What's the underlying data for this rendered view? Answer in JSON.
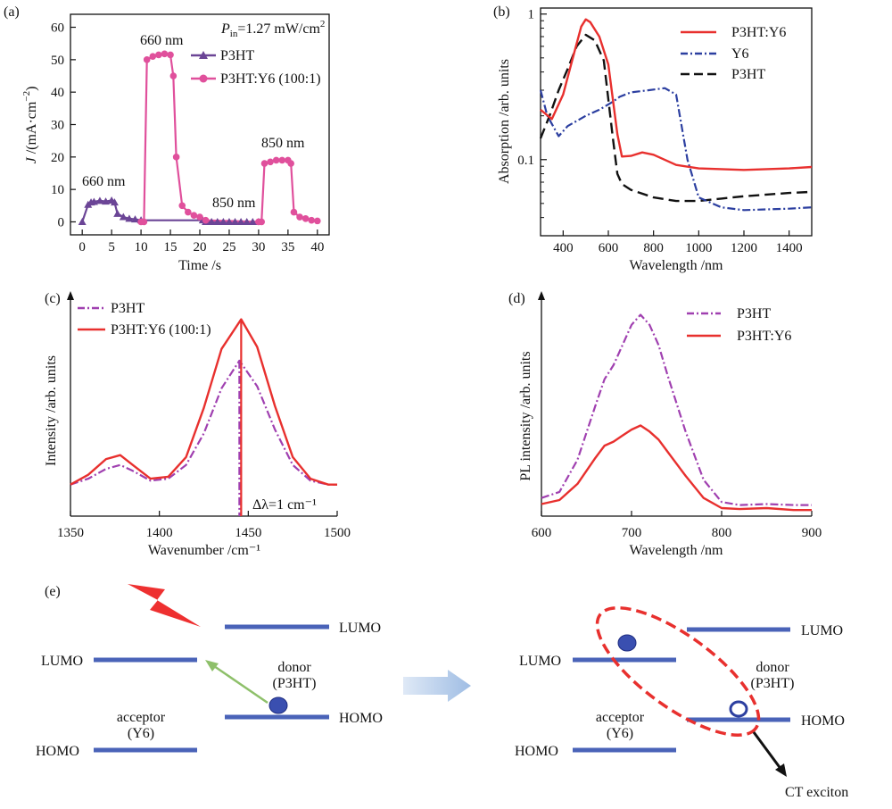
{
  "panel_labels": [
    "(a)",
    "(b)",
    "(c)",
    "(d)",
    "(e)"
  ],
  "colors": {
    "red": "#e8302e",
    "pink": "#e0509c",
    "purple": "#6b4596",
    "navy": "#2c3fa0",
    "black": "#111111",
    "violet": "#a040b0",
    "level": "#4a63b8",
    "green": "#8ec06a"
  },
  "chart_data": [
    {
      "id": "a",
      "type": "line",
      "title_annotation": {
        "p": "P",
        "sub": "in",
        "rest": "=1.27 mW/cm",
        "sup": "2"
      },
      "xlabel": "Time /s",
      "ylabel": {
        "pre": "J",
        "mid": " /(mA·cm",
        "sup": "−2",
        "post": ")"
      },
      "xlim": [
        -2,
        42
      ],
      "ylim": [
        -4,
        64
      ],
      "xticks": [
        "0",
        "5",
        "10",
        "15",
        "20",
        "25",
        "30",
        "35",
        "40"
      ],
      "yticks": [
        "0",
        "10",
        "20",
        "30",
        "40",
        "50",
        "60"
      ],
      "legend": [
        {
          "name": "P3HT",
          "marker": "triangle"
        },
        {
          "name": "P3HT:Y6 (100:1)",
          "marker": "circle"
        }
      ],
      "annotations": [
        "660 nm",
        "660 nm",
        "850 nm",
        "850 nm"
      ],
      "series": [
        {
          "name": "P3HT",
          "x": [
            0,
            1,
            1.5,
            2,
            3,
            4,
            5,
            5.5,
            6,
            7,
            8,
            9,
            10,
            20.5,
            21,
            22,
            23,
            24,
            25,
            26,
            27,
            28,
            29,
            30
          ],
          "y": [
            0,
            5.3,
            6,
            6.2,
            6.5,
            6.3,
            6.6,
            6,
            2.5,
            1.5,
            1,
            0.8,
            0.5,
            0.5,
            0,
            0,
            0,
            0,
            0,
            0,
            0,
            0,
            0,
            0
          ]
        },
        {
          "name": "P3HT:Y6 (100:1)",
          "x": [
            10,
            10.5,
            11,
            12,
            13,
            14,
            15,
            15.5,
            16,
            17,
            18,
            19,
            20,
            21,
            30,
            30.5,
            31,
            32,
            33,
            34,
            35,
            35.5,
            36,
            37,
            38,
            39,
            40
          ],
          "y": [
            0,
            0,
            50,
            51,
            51.5,
            51.8,
            51.5,
            45,
            20,
            5,
            3,
            2,
            1.5,
            0.5,
            0,
            0,
            18,
            18.5,
            19,
            19,
            19,
            18,
            3,
            1.5,
            1,
            0.5,
            0.3
          ]
        }
      ]
    },
    {
      "id": "b",
      "type": "line",
      "scale_y": "log",
      "xlabel": "Wavelength /nm",
      "ylabel": "Absorption /arb. units",
      "xlim": [
        300,
        1500
      ],
      "ylim": [
        0.03,
        1.1
      ],
      "xticks": [
        "400",
        "600",
        "800",
        "1000",
        "1200",
        "1400"
      ],
      "yticks": [
        "0.1",
        "1"
      ],
      "legend": [
        "P3HT:Y6",
        "Y6",
        "P3HT"
      ],
      "series": [
        {
          "name": "P3HT:Y6",
          "x": [
            300,
            350,
            400,
            450,
            480,
            500,
            520,
            560,
            600,
            640,
            660,
            700,
            750,
            800,
            900,
            1000,
            1200,
            1400,
            1500
          ],
          "y": [
            0.22,
            0.19,
            0.28,
            0.55,
            0.82,
            0.92,
            0.88,
            0.7,
            0.45,
            0.15,
            0.105,
            0.106,
            0.112,
            0.108,
            0.092,
            0.087,
            0.085,
            0.087,
            0.089
          ]
        },
        {
          "name": "Y6",
          "x": [
            300,
            330,
            380,
            420,
            500,
            560,
            620,
            650,
            700,
            780,
            850,
            900,
            950,
            1000,
            1100,
            1200,
            1400,
            1500
          ],
          "y": [
            0.3,
            0.2,
            0.145,
            0.17,
            0.2,
            0.22,
            0.25,
            0.27,
            0.29,
            0.3,
            0.31,
            0.28,
            0.1,
            0.055,
            0.047,
            0.045,
            0.046,
            0.047
          ]
        },
        {
          "name": "P3HT",
          "x": [
            300,
            340,
            380,
            420,
            460,
            500,
            540,
            580,
            620,
            640,
            660,
            700,
            800,
            900,
            1000,
            1100,
            1200,
            1400,
            1500
          ],
          "y": [
            0.14,
            0.2,
            0.3,
            0.42,
            0.6,
            0.72,
            0.66,
            0.48,
            0.14,
            0.08,
            0.068,
            0.062,
            0.055,
            0.052,
            0.052,
            0.054,
            0.056,
            0.059,
            0.06
          ]
        }
      ]
    },
    {
      "id": "c",
      "type": "line",
      "xlabel": "Wavenumber /cm⁻¹",
      "ylabel": "Intensity /arb. units",
      "xlim": [
        1350,
        1500
      ],
      "ylim": [
        0,
        1.08
      ],
      "xticks": [
        "1350",
        "1400",
        "1450",
        "1500"
      ],
      "legend": [
        "P3HT",
        "P3HT:Y6 (100:1)"
      ],
      "annotation": "Δλ=1 cm⁻¹",
      "peaks": [
        {
          "series": "P3HT",
          "x": 1445
        },
        {
          "series": "P3HT:Y6 (100:1)",
          "x": 1446
        }
      ],
      "series": [
        {
          "name": "P3HT",
          "x": [
            1350,
            1360,
            1370,
            1378,
            1385,
            1395,
            1405,
            1415,
            1425,
            1435,
            1445,
            1455,
            1465,
            1475,
            1485,
            1495,
            1500
          ],
          "y": [
            0.16,
            0.19,
            0.24,
            0.26,
            0.23,
            0.18,
            0.19,
            0.26,
            0.42,
            0.65,
            0.79,
            0.66,
            0.44,
            0.26,
            0.18,
            0.16,
            0.16
          ]
        },
        {
          "name": "P3HT:Y6 (100:1)",
          "x": [
            1350,
            1360,
            1370,
            1378,
            1385,
            1395,
            1405,
            1415,
            1425,
            1435,
            1446,
            1455,
            1465,
            1475,
            1485,
            1495,
            1500
          ],
          "y": [
            0.16,
            0.21,
            0.29,
            0.31,
            0.26,
            0.19,
            0.2,
            0.3,
            0.55,
            0.85,
            1.0,
            0.86,
            0.56,
            0.3,
            0.19,
            0.16,
            0.16
          ]
        }
      ]
    },
    {
      "id": "d",
      "type": "line",
      "xlabel": "Wavelength /nm",
      "ylabel": "PL intensity /arb. units",
      "xlim": [
        600,
        900
      ],
      "ylim": [
        0,
        1.1
      ],
      "xticks": [
        "600",
        "700",
        "800",
        "900"
      ],
      "legend": [
        "P3HT",
        "P3HT:Y6"
      ],
      "series": [
        {
          "name": "P3HT",
          "x": [
            600,
            620,
            640,
            660,
            670,
            680,
            690,
            700,
            710,
            720,
            730,
            740,
            760,
            780,
            800,
            820,
            850,
            880,
            900
          ],
          "y": [
            0.09,
            0.12,
            0.28,
            0.55,
            0.68,
            0.75,
            0.85,
            0.95,
            1.0,
            0.95,
            0.85,
            0.7,
            0.42,
            0.18,
            0.07,
            0.055,
            0.06,
            0.055,
            0.055
          ]
        },
        {
          "name": "P3HT:Y6",
          "x": [
            600,
            620,
            640,
            660,
            670,
            680,
            690,
            700,
            710,
            720,
            730,
            740,
            760,
            780,
            800,
            820,
            850,
            880,
            900
          ],
          "y": [
            0.06,
            0.08,
            0.16,
            0.29,
            0.35,
            0.37,
            0.4,
            0.43,
            0.45,
            0.42,
            0.38,
            0.32,
            0.2,
            0.09,
            0.04,
            0.035,
            0.04,
            0.03,
            0.03
          ]
        }
      ]
    }
  ],
  "schematic": {
    "left": {
      "lumo_acc": "LUMO",
      "homo_acc": "HOMO",
      "acceptor": "acceptor",
      "acceptor_sub": "(Y6)",
      "donor": "donor",
      "donor_sub": "(P3HT)",
      "lumo_don": "LUMO",
      "homo_don": "HOMO"
    },
    "right": {
      "lumo_acc": "LUMO",
      "homo_acc": "HOMO",
      "acceptor": "acceptor",
      "acceptor_sub": "(Y6)",
      "donor": "donor",
      "donor_sub": "(P3HT)",
      "lumo_don": "LUMO",
      "homo_don": "HOMO",
      "ct_label": "CT exciton"
    }
  }
}
